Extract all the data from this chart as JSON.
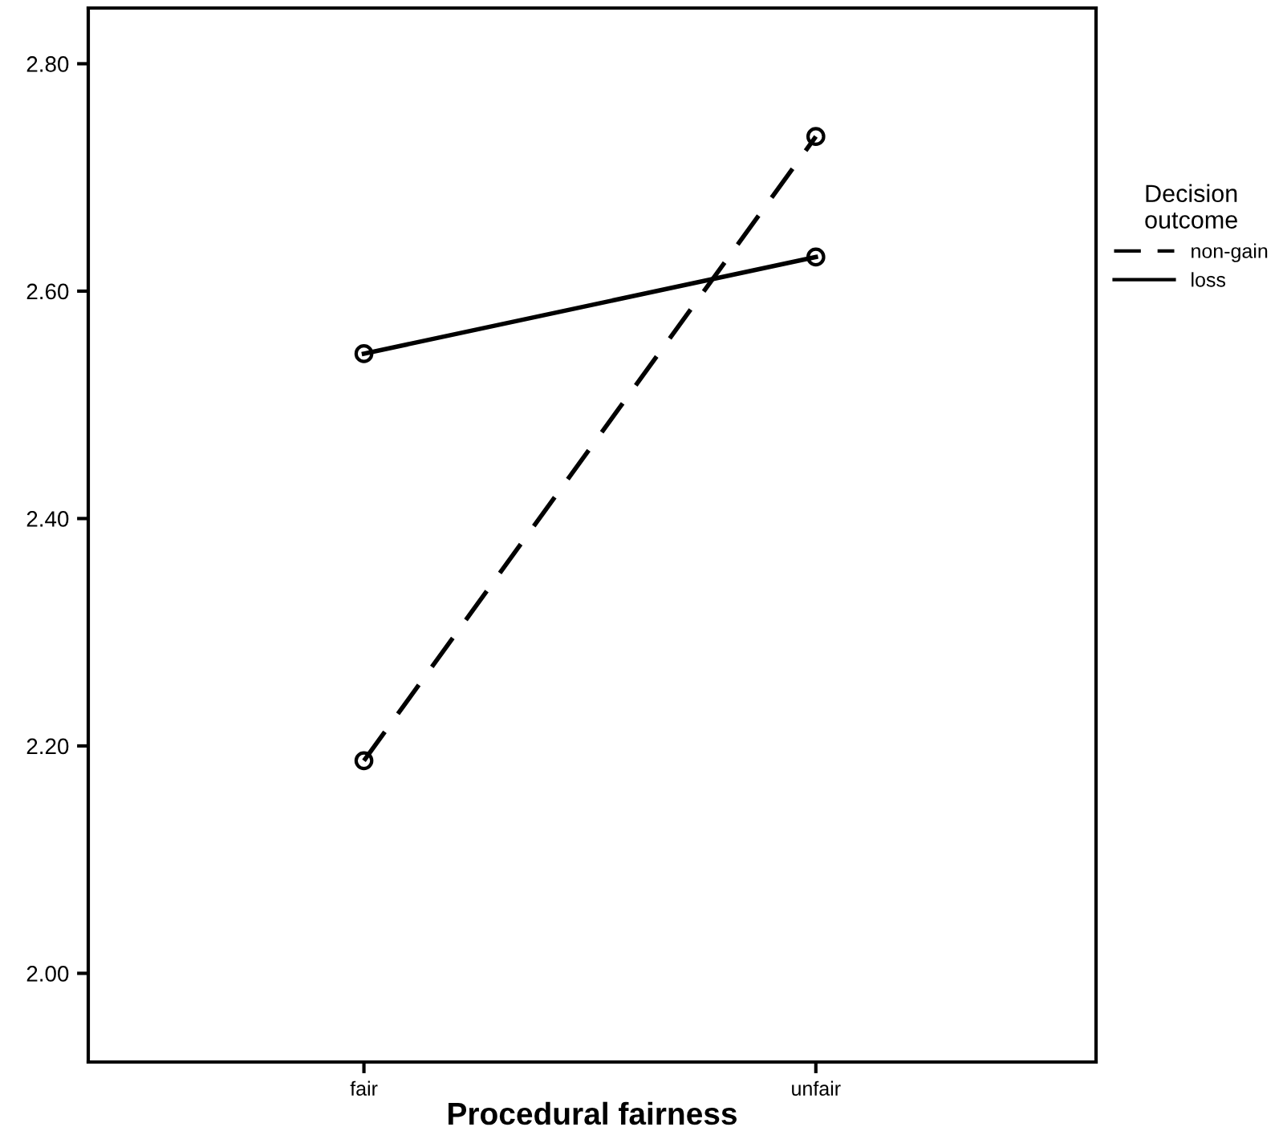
{
  "chart_data": {
    "type": "line",
    "xlabel": "Procedural fairness",
    "categories": [
      "fair",
      "unfair"
    ],
    "series": [
      {
        "name": "non-gain",
        "color": "#000000",
        "values": [
          2.187,
          2.736
        ],
        "line_style": "dashed"
      },
      {
        "name": "loss",
        "color": "#000000",
        "values": [
          2.545,
          2.63
        ],
        "line_style": "solid"
      }
    ],
    "ylim": [
      1.922,
      2.849
    ],
    "yticks": [
      {
        "value": 2.0,
        "label": "2.00"
      },
      {
        "value": 2.2,
        "label": "2.20"
      },
      {
        "value": 2.4,
        "label": "2.40"
      },
      {
        "value": 2.6,
        "label": "2.60"
      },
      {
        "value": 2.8,
        "label": "2.80"
      }
    ],
    "legend": "right",
    "legend_title": "Decision outcome",
    "marker": "circle",
    "grid": false
  }
}
